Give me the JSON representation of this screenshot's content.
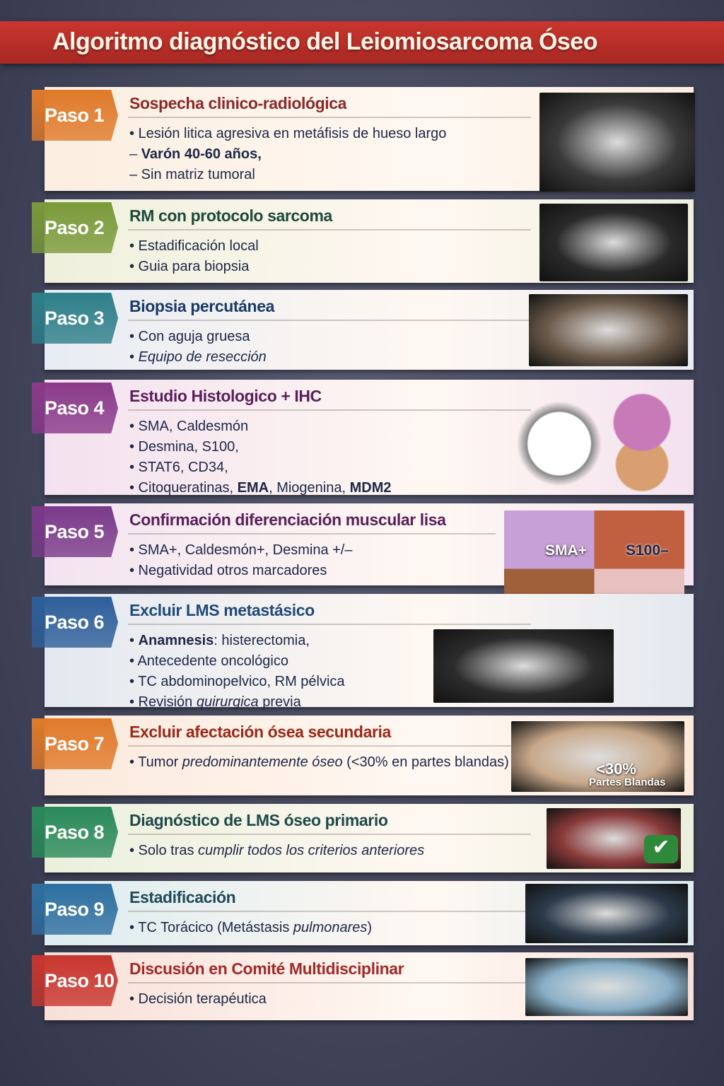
{
  "title": "Algoritmo diagnóstico del Leiomiosarcoma Óseo",
  "steps": [
    {
      "badge": "Paso 1",
      "title": "Sospecha clinico-radiológica",
      "badge_color": "#e07a2a",
      "title_color": "#8b2a2a",
      "bg": "#fbeee0",
      "image": "knee-xray-icon",
      "bullets": [
        [
          {
            "t": "• Lesión litica agresiva en metáfisis de hueso largo"
          }
        ],
        [
          {
            "t": "– "
          },
          {
            "t": "Varón 40-60 años,",
            "b": true
          }
        ],
        [
          {
            "t": "– Sin matriz tumoral"
          }
        ]
      ]
    },
    {
      "badge": "Paso 2",
      "title": "RM con protocolo sarcoma",
      "badge_color": "#7a9a3a",
      "title_color": "#1e4a3a",
      "bg": "#eef0dc",
      "image": "knee-mri-icon",
      "bullets": [
        [
          {
            "t": "• Estadificación local"
          }
        ],
        [
          {
            "t": "• Guia para biopsia"
          }
        ]
      ]
    },
    {
      "badge": "Paso 3",
      "title": "Biopsia percutánea",
      "badge_color": "#2e7f8a",
      "title_color": "#1a3a6a",
      "bg": "#e8ecf3",
      "image": "biopsy-needle-icon",
      "bullets": [
        [
          {
            "t": "• Con aguja gruesa"
          }
        ],
        [
          {
            "t": "• "
          },
          {
            "t": "Equipo de resección",
            "i": true
          }
        ]
      ]
    },
    {
      "badge": "Paso 4",
      "title": "Estudio Histologico + IHC",
      "badge_color": "#8a3a8a",
      "title_color": "#5a1f5a",
      "bg": "#f3e1ef",
      "image": "microscope-icon",
      "bullets": [
        [
          {
            "t": "• SMA, Caldesmón"
          }
        ],
        [
          {
            "t": "• Desmina, S100,"
          }
        ],
        [
          {
            "t": "• STAT6, CD34,"
          }
        ],
        [
          {
            "t": "• Citoqueratinas, "
          },
          {
            "t": "EMA",
            "b": true
          },
          {
            "t": ", Miogenina, "
          },
          {
            "t": "MDM2",
            "b": true
          }
        ]
      ]
    },
    {
      "badge": "Paso 5",
      "title": "Confirmación diferenciación muscular lisa",
      "badge_color": "#7a3a8a",
      "title_color": "#5a1f5a",
      "bg": "#f3e3f0",
      "image": "histology-panels-icon",
      "image_labels": [
        "SMA+",
        "S100–"
      ],
      "bullets": [
        [
          {
            "t": "• SMA+, Caldesmón+, Desmina +/–"
          }
        ],
        [
          {
            "t": "• Negatividad otros marcadores"
          }
        ]
      ]
    },
    {
      "badge": "Paso 6",
      "title": "Excluir LMS metastásico",
      "badge_color": "#2e5f9a",
      "title_color": "#1f4a7a",
      "bg": "#e3e8f0",
      "image": "ct-abdomen-icon",
      "bullets": [
        [
          {
            "t": "• "
          },
          {
            "t": "Anamnesis",
            "b": true
          },
          {
            "t": ": histerectomia,"
          }
        ],
        [
          {
            "t": "• Antecedente oncológico"
          }
        ],
        [
          {
            "t": "• TC abdominopelvico, RM pélvica"
          }
        ],
        [
          {
            "t": "• Revisión "
          },
          {
            "t": "quirurgica",
            "i": true
          },
          {
            "t": " previa"
          }
        ]
      ]
    },
    {
      "badge": "Paso 7",
      "title": "Excluir afectación ósea secundaria",
      "badge_color": "#e07a2a",
      "title_color": "#9a2a1a",
      "bg": "#fbe9dc",
      "image": "bone-tumor-icon",
      "image_labels": [
        "<30%",
        "Partes Blandas"
      ],
      "bullets": [
        [
          {
            "t": "• Tumor "
          },
          {
            "t": "predominantemente óseo",
            "i": true
          },
          {
            "t": " (<30% en partes blandas)"
          }
        ]
      ]
    },
    {
      "badge": "Paso 8",
      "title": "Diagnóstico de LMS óseo primario",
      "badge_color": "#2a8a5a",
      "title_color": "#1e4a4a",
      "bg": "#eaf0dc",
      "image": "lungs-check-icon",
      "bullets": [
        [
          {
            "t": "• Solo tras "
          },
          {
            "t": "cumplir todos los criterios anteriores",
            "i": true
          }
        ]
      ]
    },
    {
      "badge": "Paso 9",
      "title": "Estadificación",
      "badge_color": "#2e6fa0",
      "title_color": "#1f4a5a",
      "bg": "#dcecef",
      "image": "ct-thorax-icon",
      "bullets": [
        [
          {
            "t": "• TC Torácico (Metástasis "
          },
          {
            "t": "pulmonares",
            "i": true
          },
          {
            "t": ")"
          }
        ]
      ]
    },
    {
      "badge": "Paso 10",
      "title": "Discusión en Comité Multidisciplinar",
      "badge_color": "#c8362e",
      "title_color": "#a02a2a",
      "bg": "#f8e0d8",
      "image": "medical-team-icon",
      "bullets": [
        [
          {
            "t": "• Decisión terapéutica"
          }
        ]
      ]
    }
  ]
}
